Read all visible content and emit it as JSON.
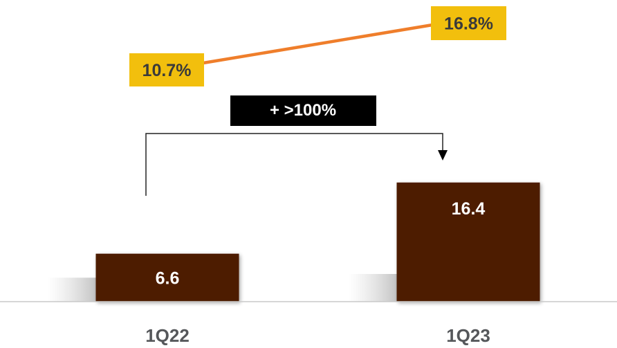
{
  "chart_data": {
    "type": "bar",
    "categories": [
      "1Q22",
      "1Q23"
    ],
    "series": [
      {
        "values": [
          6.6,
          16.4
        ]
      }
    ],
    "value_labels": [
      "6.6",
      "16.4"
    ],
    "line_series": [
      {
        "values": [
          10.7,
          16.8
        ],
        "labels": [
          "10.7%",
          "16.8%"
        ]
      }
    ],
    "annotation": "+ >100%",
    "colors": {
      "bar": "#4e1a05",
      "line": "#ef7e2b",
      "line_label_bg": "#f2bf0d",
      "annotation_bg": "#000000",
      "axis": "#c9c9c9"
    }
  }
}
